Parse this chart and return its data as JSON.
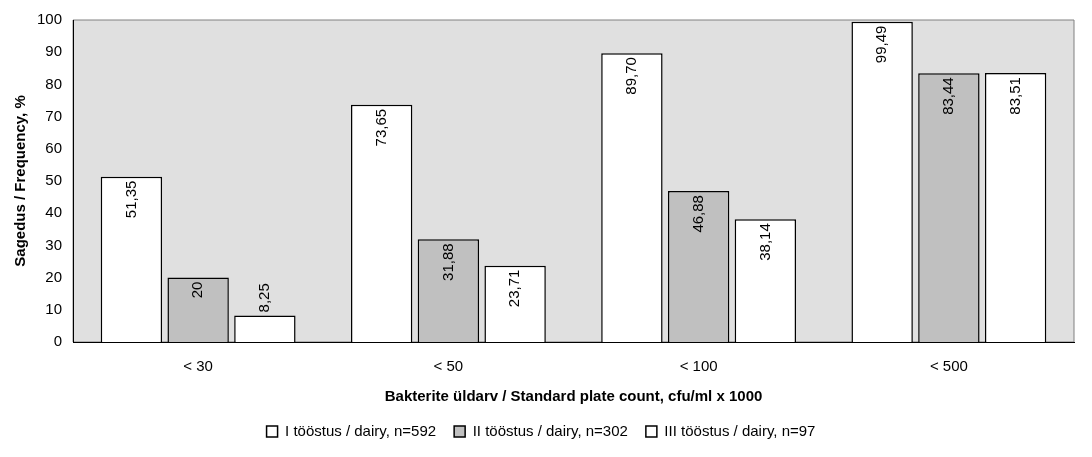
{
  "chart_data": {
    "type": "bar",
    "xlabel": "Bakterite üldarv / Standard plate count, cfu/ml x 1000",
    "ylabel": "Sagedus / Frequency, %",
    "categories": [
      "< 30",
      "< 50",
      "< 100",
      "< 500"
    ],
    "series": [
      {
        "name": "I tööstus / dairy, n=592",
        "color": "#ffffff",
        "values": [
          51.35,
          73.65,
          89.7,
          99.49
        ],
        "value_labels": [
          "51,35",
          "73,65",
          "89,70",
          "99,49"
        ]
      },
      {
        "name": "II tööstus / dairy, n=302",
        "color": "#c0c0c0",
        "values": [
          20,
          31.88,
          46.88,
          83.44
        ],
        "value_labels": [
          "20",
          "31,88",
          "46,88",
          "83,44"
        ]
      },
      {
        "name": "III tööstus / dairy, n=97",
        "color": "#ffffff",
        "values": [
          8.25,
          23.71,
          38.14,
          83.51
        ],
        "value_labels": [
          "8,25",
          "23,71",
          "38,14",
          "83,51"
        ]
      }
    ],
    "ylim": [
      0,
      100
    ],
    "yticks": [
      0,
      10,
      20,
      30,
      40,
      50,
      60,
      70,
      80,
      90,
      100
    ],
    "grid": false,
    "legend": "bottom"
  }
}
